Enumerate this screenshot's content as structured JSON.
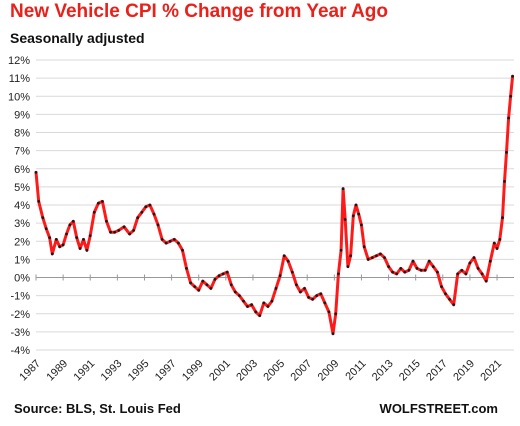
{
  "title": "New Vehicle CPI % Change from Year Ago",
  "subtitle": "Seasonally adjusted",
  "source": "Source: BLS, St. Louis Fed",
  "brand": "WOLFSTREET.com",
  "colors": {
    "title": "#e8211a",
    "line": "#ff1a1a",
    "marker": "#1a1a1a",
    "grid": "#d9d9d9"
  },
  "chart_data": {
    "type": "line",
    "title": "New Vehicle CPI % Change from Year Ago",
    "subtitle": "Seasonally adjusted",
    "ylim": [
      -4,
      12
    ],
    "xlim": [
      1987,
      2022.25
    ],
    "y_ticks": [
      -4,
      -3,
      -2,
      -1,
      0,
      1,
      2,
      3,
      4,
      5,
      6,
      7,
      8,
      9,
      10,
      11,
      12
    ],
    "y_tick_labels": [
      "-4%",
      "-3%",
      "-2%",
      "-1%",
      "0%",
      "1%",
      "2%",
      "3%",
      "4%",
      "5%",
      "6%",
      "7%",
      "8%",
      "9%",
      "10%",
      "11%",
      "12%"
    ],
    "x_ticks": [
      1987,
      1989,
      1991,
      1993,
      1995,
      1997,
      1999,
      2001,
      2003,
      2005,
      2007,
      2009,
      2011,
      2013,
      2015,
      2017,
      2019,
      2021
    ],
    "x_tick_labels": [
      "1987",
      "1989",
      "1991",
      "1993",
      "1995",
      "1997",
      "1999",
      "2001",
      "2003",
      "2005",
      "2007",
      "2009",
      "2011",
      "2013",
      "2015",
      "2017",
      "2019",
      "2021"
    ],
    "grid": "horizontal",
    "series": [
      {
        "x": [
          1987.0,
          1987.2,
          1987.5,
          1987.75,
          1988.0,
          1988.2,
          1988.5,
          1988.75,
          1989.0,
          1989.25,
          1989.5,
          1989.75,
          1990.0,
          1990.25,
          1990.5,
          1990.75,
          1991.0,
          1991.3,
          1991.6,
          1991.9,
          1992.2,
          1992.5,
          1992.8,
          1993.1,
          1993.5,
          1993.9,
          1994.2,
          1994.5,
          1994.8,
          1995.1,
          1995.4,
          1995.7,
          1996.0,
          1996.3,
          1996.6,
          1996.9,
          1997.2,
          1997.5,
          1997.8,
          1998.1,
          1998.4,
          1998.7,
          1999.0,
          1999.3,
          1999.6,
          1999.9,
          2000.2,
          2000.5,
          2000.8,
          2001.1,
          2001.4,
          2001.7,
          2002.0,
          2002.3,
          2002.6,
          2002.9,
          2003.2,
          2003.5,
          2003.8,
          2004.1,
          2004.4,
          2004.7,
          2005.0,
          2005.3,
          2005.6,
          2005.9,
          2006.2,
          2006.5,
          2006.8,
          2007.1,
          2007.4,
          2007.7,
          2008.0,
          2008.3,
          2008.6,
          2008.9,
          2009.1,
          2009.3,
          2009.5,
          2009.65,
          2009.8,
          2010.0,
          2010.2,
          2010.4,
          2010.6,
          2010.8,
          2011.0,
          2011.2,
          2011.5,
          2011.8,
          2012.1,
          2012.4,
          2012.7,
          2013.0,
          2013.3,
          2013.6,
          2013.9,
          2014.2,
          2014.5,
          2014.8,
          2015.1,
          2015.4,
          2015.7,
          2016.0,
          2016.3,
          2016.6,
          2016.9,
          2017.2,
          2017.5,
          2017.8,
          2018.1,
          2018.4,
          2018.7,
          2019.0,
          2019.3,
          2019.6,
          2019.9,
          2020.2,
          2020.5,
          2020.8,
          2021.0,
          2021.2,
          2021.4,
          2021.55,
          2021.7,
          2021.85,
          2022.0,
          2022.15
        ],
        "y": [
          5.8,
          4.2,
          3.3,
          2.7,
          2.2,
          1.3,
          2.1,
          1.7,
          1.8,
          2.4,
          2.9,
          3.1,
          2.2,
          1.6,
          2.1,
          1.5,
          2.3,
          3.6,
          4.1,
          4.2,
          3.1,
          2.5,
          2.5,
          2.6,
          2.8,
          2.4,
          2.6,
          3.3,
          3.6,
          3.9,
          4.0,
          3.5,
          2.9,
          2.1,
          1.9,
          2.0,
          2.1,
          1.9,
          1.5,
          0.5,
          -0.3,
          -0.5,
          -0.7,
          -0.2,
          -0.4,
          -0.6,
          -0.1,
          0.1,
          0.2,
          0.3,
          -0.4,
          -0.8,
          -1.0,
          -1.3,
          -1.6,
          -1.5,
          -1.9,
          -2.1,
          -1.4,
          -1.6,
          -1.3,
          -0.6,
          0.1,
          1.2,
          0.9,
          0.3,
          -0.4,
          -0.8,
          -0.6,
          -1.1,
          -1.2,
          -1.0,
          -0.9,
          -1.4,
          -1.9,
          -3.1,
          -2.0,
          0.2,
          1.5,
          4.9,
          3.2,
          0.6,
          1.2,
          3.4,
          4.0,
          3.5,
          2.9,
          1.7,
          1.0,
          1.1,
          1.2,
          1.3,
          1.1,
          0.6,
          0.3,
          0.2,
          0.5,
          0.3,
          0.4,
          0.9,
          0.5,
          0.4,
          0.4,
          0.9,
          0.6,
          0.3,
          -0.5,
          -0.9,
          -1.2,
          -1.5,
          0.2,
          0.4,
          0.2,
          0.8,
          1.1,
          0.5,
          0.2,
          -0.2,
          0.9,
          1.9,
          1.6,
          2.1,
          3.3,
          5.3,
          6.9,
          8.8,
          10.0,
          11.1
        ]
      }
    ]
  }
}
